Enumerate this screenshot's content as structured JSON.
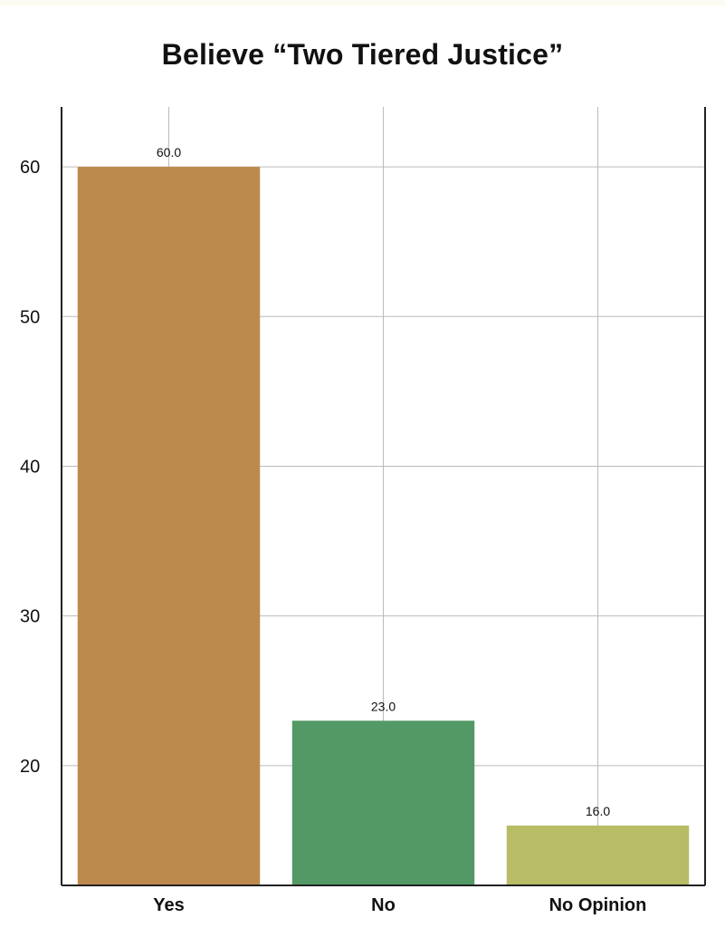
{
  "chart_data": {
    "type": "bar",
    "title": "Believe “Two Tiered Justice”",
    "xlabel": "",
    "ylabel": "",
    "categories": [
      "Yes",
      "No",
      "No Opinion"
    ],
    "values": [
      60.0,
      23.0,
      16.0
    ],
    "data_labels": [
      "60.0",
      "23.0",
      "16.0"
    ],
    "colors": [
      "#bd8a4d",
      "#539966",
      "#b8bc64"
    ],
    "ylim": [
      12,
      64
    ],
    "yticks": [
      20,
      30,
      40,
      50,
      60
    ],
    "ytick_labels": [
      "20",
      "30",
      "40",
      "50",
      "60"
    ],
    "grid": true,
    "grid_color": "#bbbbbb",
    "axis_color": "#222222"
  }
}
